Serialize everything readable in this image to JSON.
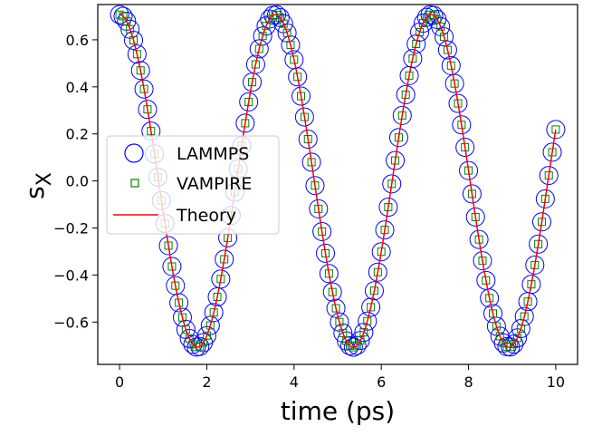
{
  "chart_data": {
    "type": "scatter",
    "xlabel": "time (ps)",
    "ylabel": "s",
    "ylabel_subscript": "X",
    "xlim": [
      -0.5,
      10.5
    ],
    "ylim": [
      -0.78,
      0.75
    ],
    "x_ticks": [
      0,
      2,
      4,
      6,
      8,
      10
    ],
    "y_ticks": [
      -0.6,
      -0.4,
      -0.2,
      0.0,
      0.2,
      0.4,
      0.6
    ],
    "x_tick_labels": [
      "0",
      "2",
      "4",
      "6",
      "8",
      "10"
    ],
    "y_tick_labels": [
      "−0.6",
      "−0.4",
      "−0.2",
      "0.0",
      "0.2",
      "0.4",
      "0.6"
    ],
    "grid": false,
    "legend_position": "center-left",
    "model": {
      "amplitude": 0.7071,
      "period_ps": 3.5714,
      "phase_deg": 0,
      "t_start": 0,
      "t_end": 10,
      "sample_step_ps": 0.08
    },
    "series": [
      {
        "name": "LAMMPS",
        "marker": "circle-open",
        "color": "#0000ff"
      },
      {
        "name": "VAMPIRE",
        "marker": "square-open",
        "color": "#008000"
      },
      {
        "name": "Theory",
        "marker": "line",
        "color": "#ff0000"
      }
    ]
  }
}
